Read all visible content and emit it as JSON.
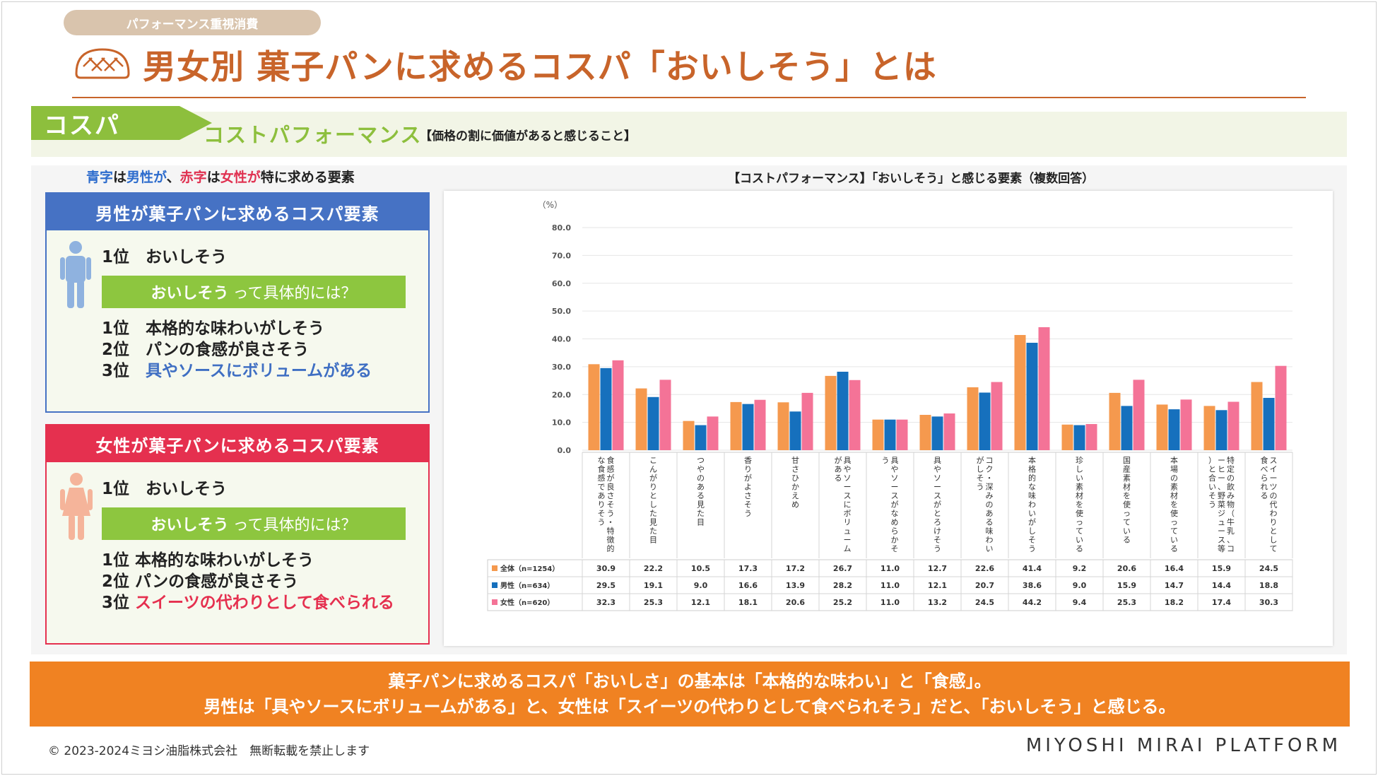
{
  "header": {
    "category": "パフォーマンス重視消費",
    "title": "男女別 菓子パンに求めるコスパ「おいしそう」とは"
  },
  "definition": {
    "tag": "コスパ",
    "term": "コストパフォーマンス",
    "meaning": "【価格の割に価値があると感じること】"
  },
  "legend_note": {
    "blue_word": "青字",
    "mid1": "は",
    "male_word": "男性が",
    "sep": "、",
    "red_word": "赤字",
    "mid2": "は",
    "female_word": "女性が",
    "tail": "特に求める要素"
  },
  "male_card": {
    "title": "男性が菓子パンに求めるコスパ要素",
    "rank1": "1位　おいしそう",
    "bar_bold": "おいしそう",
    "bar_rest": "って具体的には？",
    "ranks": [
      {
        "rank": "1位",
        "text": "本格的な味わいがしそう"
      },
      {
        "rank": "2位",
        "text": "パンの食感が良さそう"
      },
      {
        "rank": "3位",
        "text": "具やソースにボリュームがある"
      }
    ]
  },
  "female_card": {
    "title": "女性が菓子パンに求めるコスパ要素",
    "rank1": "1位　おいしそう",
    "bar_bold": "おいしそう",
    "bar_rest": "って具体的には？",
    "ranks": [
      {
        "rank": "1位",
        "text": "本格的な味わいがしそう"
      },
      {
        "rank": "2位",
        "text": "パンの食感が良さそう"
      },
      {
        "rank": "3位",
        "text": "スイーツの代わりとして食べられる"
      }
    ]
  },
  "chart_data": {
    "type": "bar",
    "title": "【コストパフォーマンス】「おいしそう」と感じる要素（複数回答）",
    "ylabel": "（%）",
    "ylim": [
      0,
      80
    ],
    "yticks": [
      "80.0",
      "70.0",
      "60.0",
      "50.0",
      "40.0",
      "30.0",
      "20.0",
      "10.0",
      "0.0"
    ],
    "categories": [
      "食感が良さそう・特徴的な食感でありそう",
      "こんがりとした見た目",
      "つやのある見た目",
      "香りがよさそう",
      "甘さひかえめ",
      "具やソースにボリュームがある",
      "具やソースがなめらかそう",
      "具やソースがとろけそう",
      "コク・深みのある味わいがしそう",
      "本格的な味わいがしそう",
      "珍しい素材を使っている",
      "国産素材を使っている",
      "本場の素材を使っている",
      "特定の飲み物（牛乳、コーヒー、野菜ジュース等）と合いそう",
      "スイーツの代わりとして食べられる"
    ],
    "series": [
      {
        "name": "全体",
        "n": "（n=1254）",
        "color": "#f5994e",
        "values": [
          30.9,
          22.2,
          10.5,
          17.3,
          17.2,
          26.7,
          11.0,
          12.7,
          22.6,
          41.4,
          9.2,
          20.6,
          16.4,
          15.9,
          24.5
        ],
        "labels": [
          "30.9",
          "22.2",
          "10.5",
          "17.3",
          "17.2",
          "26.7",
          "11.0",
          "12.7",
          "22.6",
          "41.4",
          "9.2",
          "20.6",
          "16.4",
          "15.9",
          "24.5"
        ]
      },
      {
        "name": "男性",
        "n": "（n=634）",
        "color": "#1670bd",
        "values": [
          29.5,
          19.1,
          9.0,
          16.6,
          13.9,
          28.2,
          11.0,
          12.1,
          20.7,
          38.6,
          9.0,
          15.9,
          14.7,
          14.4,
          18.8
        ],
        "labels": [
          "29.5",
          "19.1",
          "9.0",
          "16.6",
          "13.9",
          "28.2",
          "11.0",
          "12.1",
          "20.7",
          "38.6",
          "9.0",
          "15.9",
          "14.7",
          "14.4",
          "18.8"
        ]
      },
      {
        "name": "女性",
        "n": "（n=620）",
        "color": "#f47397",
        "values": [
          32.3,
          25.3,
          12.1,
          18.1,
          20.6,
          25.2,
          11.0,
          13.2,
          24.5,
          44.2,
          9.4,
          25.3,
          18.2,
          17.4,
          30.3
        ],
        "labels": [
          "32.3",
          "25.3",
          "12.1",
          "18.1",
          "20.6",
          "25.2",
          "11.0",
          "13.2",
          "24.5",
          "44.2",
          "9.4",
          "25.3",
          "18.2",
          "17.4",
          "30.3"
        ]
      }
    ]
  },
  "conclusion": {
    "line1": "菓子パンに求めるコスパ「おいしさ」の基本は「本格的な味わい」と「食感」。",
    "line2": "男性は「具やソースにボリュームがある」と、女性は「スイーツの代わりとして食べられそう」だと、「おいしそう」と感じる。"
  },
  "footer": {
    "copyright": "© 2023-2024ミヨシ油脂株式会社　無断転載を禁止します",
    "brand": "MIYOSHI MIRAI PLATFORM"
  },
  "colors": {
    "accent_orange": "#c8642a",
    "green": "#8dc63f",
    "male_blue": "#4672c4",
    "female_red": "#e5304f",
    "band_orange": "#f08222"
  }
}
